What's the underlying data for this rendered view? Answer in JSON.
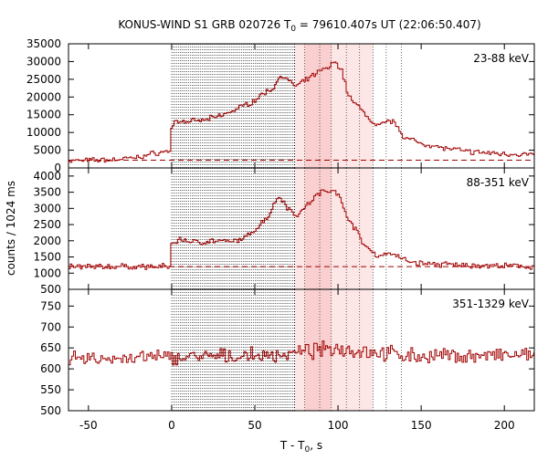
{
  "chart_data": {
    "type": "line",
    "title_main": "KONUS-WIND S1 GRB 020726 T",
    "title_sub": "0",
    "title_rest": " = 79610.407s UT (22:06:50.407)",
    "xlabel_main": "T - T",
    "xlabel_sub": "0",
    "xlabel_rest": ", s",
    "ylabel": "counts / 1024 ms",
    "xlim": [
      -62,
      218
    ],
    "xticks": [
      -50,
      0,
      50,
      100,
      150,
      200
    ],
    "grid": false,
    "colors": {
      "series": "#a00000",
      "background_line": "#a00000",
      "shade_light": "#fde6e6",
      "shade_dark": "#f9cfcf",
      "vline": "#000000"
    },
    "shaded_intervals": [
      [
        74,
        80,
        "light"
      ],
      [
        80,
        89,
        "dark"
      ],
      [
        89,
        96,
        "dark"
      ],
      [
        96,
        105,
        "light"
      ],
      [
        105,
        113,
        "light"
      ],
      [
        113,
        121,
        "light"
      ]
    ],
    "vlines_dense_start": 0,
    "vlines_dense_end": 74,
    "vlines_dense_step": 1.024,
    "vlines_sparse": [
      74,
      80,
      89,
      96,
      105,
      113,
      121,
      129,
      138
    ],
    "panels": [
      {
        "name": "23-88 keV",
        "ylim": [
          0,
          35000
        ],
        "yticks": [
          0,
          5000,
          10000,
          15000,
          20000,
          25000,
          30000,
          35000
        ],
        "background": 2200,
        "anchors": [
          [
            -62,
            2000
          ],
          [
            -35,
            2300
          ],
          [
            -20,
            3000
          ],
          [
            -10,
            4200
          ],
          [
            -1,
            4800
          ],
          [
            0,
            11000
          ],
          [
            2,
            13200
          ],
          [
            10,
            13000
          ],
          [
            20,
            13500
          ],
          [
            30,
            14800
          ],
          [
            40,
            16800
          ],
          [
            50,
            19000
          ],
          [
            55,
            21000
          ],
          [
            60,
            22000
          ],
          [
            63,
            24000
          ],
          [
            66,
            26500
          ],
          [
            70,
            24500
          ],
          [
            75,
            23000
          ],
          [
            80,
            24500
          ],
          [
            85,
            26000
          ],
          [
            90,
            27500
          ],
          [
            95,
            28500
          ],
          [
            98,
            30000
          ],
          [
            102,
            28000
          ],
          [
            106,
            21000
          ],
          [
            110,
            18000
          ],
          [
            115,
            16500
          ],
          [
            118,
            14000
          ],
          [
            122,
            12000
          ],
          [
            126,
            12000
          ],
          [
            130,
            13500
          ],
          [
            135,
            12500
          ],
          [
            140,
            8500
          ],
          [
            150,
            7000
          ],
          [
            165,
            5500
          ],
          [
            180,
            4500
          ],
          [
            200,
            4000
          ],
          [
            218,
            3700
          ]
        ],
        "noise": 900
      },
      {
        "name": "88-351 keV",
        "ylim": [
          500,
          4250
        ],
        "yticks": [
          500,
          1000,
          1500,
          2000,
          2500,
          3000,
          3500,
          4000
        ],
        "background": 1200,
        "anchors": [
          [
            -62,
            1200
          ],
          [
            -1,
            1200
          ],
          [
            0,
            1900
          ],
          [
            5,
            2050
          ],
          [
            15,
            1950
          ],
          [
            25,
            2000
          ],
          [
            35,
            1950
          ],
          [
            45,
            2100
          ],
          [
            50,
            2350
          ],
          [
            55,
            2600
          ],
          [
            60,
            2900
          ],
          [
            62,
            3200
          ],
          [
            65,
            3400
          ],
          [
            70,
            3000
          ],
          [
            75,
            2800
          ],
          [
            80,
            3000
          ],
          [
            85,
            3300
          ],
          [
            90,
            3500
          ],
          [
            95,
            3550
          ],
          [
            98,
            3600
          ],
          [
            100,
            3450
          ],
          [
            104,
            2900
          ],
          [
            108,
            2600
          ],
          [
            112,
            2200
          ],
          [
            116,
            1850
          ],
          [
            120,
            1700
          ],
          [
            125,
            1500
          ],
          [
            130,
            1650
          ],
          [
            135,
            1550
          ],
          [
            140,
            1400
          ],
          [
            150,
            1300
          ],
          [
            170,
            1250
          ],
          [
            218,
            1200
          ]
        ],
        "noise": 110
      },
      {
        "name": "351-1329 keV",
        "ylim": [
          500,
          790
        ],
        "yticks": [
          500,
          550,
          600,
          650,
          700,
          750
        ],
        "anchors": [
          [
            -62,
            622
          ],
          [
            0,
            628
          ],
          [
            40,
            630
          ],
          [
            60,
            632
          ],
          [
            80,
            640
          ],
          [
            100,
            650
          ],
          [
            120,
            640
          ],
          [
            150,
            630
          ],
          [
            218,
            632
          ]
        ],
        "noise": 22
      }
    ]
  }
}
